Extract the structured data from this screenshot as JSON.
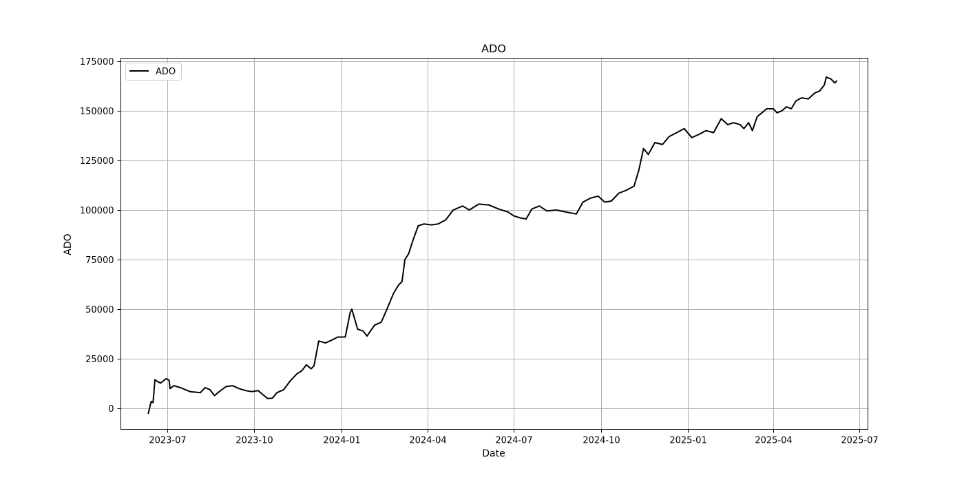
{
  "chart_data": {
    "type": "line",
    "title": "ADO",
    "xlabel": "Date",
    "ylabel": "ADO",
    "x_tick_labels": [
      "2023-07",
      "2023-10",
      "2024-01",
      "2024-04",
      "2024-07",
      "2024-10",
      "2025-01",
      "2025-04",
      "2025-07"
    ],
    "y_tick_labels": [
      "0",
      "25000",
      "50000",
      "75000",
      "100000",
      "125000",
      "150000",
      "175000"
    ],
    "y_ticks": [
      0,
      25000,
      50000,
      75000,
      100000,
      125000,
      150000,
      175000
    ],
    "xlim": [
      "2023-05-13",
      "2025-07-10"
    ],
    "ylim": [
      -10500,
      176500
    ],
    "grid": true,
    "legend": {
      "placement": "top-left"
    },
    "series": [
      {
        "name": "ADO",
        "color": "#000000",
        "x": [
          "2023-06-11",
          "2023-06-14",
          "2023-06-16",
          "2023-06-18",
          "2023-06-21",
          "2023-06-24",
          "2023-06-27",
          "2023-06-30",
          "2023-07-03",
          "2023-07-04",
          "2023-07-08",
          "2023-07-15",
          "2023-07-25",
          "2023-08-05",
          "2023-08-10",
          "2023-08-15",
          "2023-08-20",
          "2023-08-25",
          "2023-09-01",
          "2023-09-08",
          "2023-09-15",
          "2023-09-22",
          "2023-09-28",
          "2023-10-05",
          "2023-10-10",
          "2023-10-15",
          "2023-10-20",
          "2023-10-25",
          "2023-11-01",
          "2023-11-08",
          "2023-11-15",
          "2023-11-20",
          "2023-11-25",
          "2023-11-30",
          "2023-12-03",
          "2023-12-08",
          "2023-12-15",
          "2023-12-22",
          "2023-12-28",
          "2024-01-05",
          "2024-01-08",
          "2024-01-10",
          "2024-01-12",
          "2024-01-18",
          "2024-01-24",
          "2024-01-28",
          "2024-02-05",
          "2024-02-12",
          "2024-02-18",
          "2024-02-25",
          "2024-03-01",
          "2024-03-05",
          "2024-03-08",
          "2024-03-12",
          "2024-03-16",
          "2024-03-22",
          "2024-03-28",
          "2024-04-05",
          "2024-04-12",
          "2024-04-20",
          "2024-04-28",
          "2024-05-08",
          "2024-05-15",
          "2024-05-25",
          "2024-06-05",
          "2024-06-15",
          "2024-06-25",
          "2024-07-01",
          "2024-07-08",
          "2024-07-14",
          "2024-07-20",
          "2024-07-28",
          "2024-08-05",
          "2024-08-15",
          "2024-08-25",
          "2024-09-05",
          "2024-09-12",
          "2024-09-20",
          "2024-09-28",
          "2024-10-05",
          "2024-10-12",
          "2024-10-20",
          "2024-10-28",
          "2024-11-05",
          "2024-11-10",
          "2024-11-15",
          "2024-11-20",
          "2024-11-27",
          "2024-12-05",
          "2024-12-12",
          "2024-12-20",
          "2024-12-28",
          "2025-01-05",
          "2025-01-12",
          "2025-01-20",
          "2025-01-28",
          "2025-02-05",
          "2025-02-12",
          "2025-02-18",
          "2025-02-25",
          "2025-03-01",
          "2025-03-06",
          "2025-03-10",
          "2025-03-15",
          "2025-03-20",
          "2025-03-25",
          "2025-04-01",
          "2025-04-05",
          "2025-04-10",
          "2025-04-15",
          "2025-04-20",
          "2025-04-25",
          "2025-05-01",
          "2025-05-08",
          "2025-05-15",
          "2025-05-20",
          "2025-05-25",
          "2025-05-27",
          "2025-06-01",
          "2025-06-05",
          "2025-06-07"
        ],
        "y": [
          -2500,
          3500,
          3000,
          14500,
          13500,
          12800,
          14000,
          15000,
          14200,
          10000,
          11500,
          10500,
          8500,
          8000,
          10500,
          9500,
          6500,
          8500,
          11000,
          11500,
          10000,
          9000,
          8500,
          9000,
          7000,
          5000,
          5200,
          8000,
          9500,
          14000,
          17500,
          19000,
          22000,
          20000,
          21500,
          34000,
          33000,
          34500,
          36000,
          36000,
          43000,
          48000,
          50000,
          40000,
          39000,
          36500,
          42000,
          43500,
          50000,
          58000,
          62000,
          64000,
          75000,
          78000,
          84000,
          92000,
          93000,
          92500,
          93000,
          95000,
          100000,
          102000,
          100000,
          103000,
          102500,
          100500,
          99000,
          97000,
          96000,
          95500,
          100500,
          102000,
          99500,
          100000,
          99000,
          98000,
          104000,
          106000,
          107000,
          104000,
          104500,
          108500,
          110000,
          112000,
          120000,
          131000,
          128000,
          134000,
          133000,
          137000,
          139000,
          141000,
          136500,
          138000,
          140000,
          139000,
          146000,
          143000,
          144000,
          143000,
          141000,
          144000,
          140000,
          147000,
          149000,
          151000,
          151000,
          149000,
          150000,
          152000,
          151000,
          155000,
          156500,
          156000,
          159000,
          160000,
          163000,
          167000,
          166000,
          164000,
          165000
        ]
      }
    ]
  }
}
